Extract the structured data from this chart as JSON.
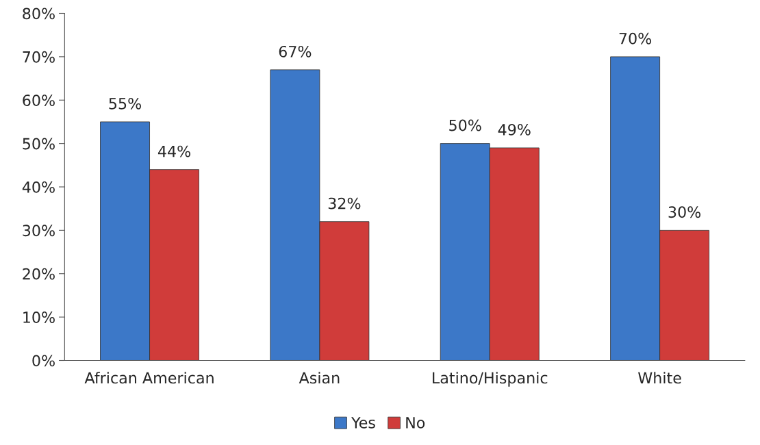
{
  "chart_data": {
    "type": "bar",
    "categories": [
      "African American",
      "Asian",
      "Latino/Hispanic",
      "White"
    ],
    "series": [
      {
        "name": "Yes",
        "color": "#3c78c8",
        "values": [
          55,
          67,
          50,
          70
        ],
        "value_labels": [
          "55%",
          "67%",
          "50%",
          "70%"
        ]
      },
      {
        "name": "No",
        "color": "#d03c3a",
        "values": [
          44,
          32,
          49,
          30
        ],
        "value_labels": [
          "44%",
          "32%",
          "49%",
          "30%"
        ]
      }
    ],
    "ylim": [
      0,
      80
    ],
    "yticks": [
      {
        "value": 0,
        "label": "0%"
      },
      {
        "value": 10,
        "label": "10%"
      },
      {
        "value": 20,
        "label": "20%"
      },
      {
        "value": 30,
        "label": "30%"
      },
      {
        "value": 40,
        "label": "40%"
      },
      {
        "value": 50,
        "label": "50%"
      },
      {
        "value": 60,
        "label": "60%"
      },
      {
        "value": 70,
        "label": "70%"
      },
      {
        "value": 80,
        "label": "80%"
      }
    ],
    "grid": false,
    "legend": "bottom"
  }
}
